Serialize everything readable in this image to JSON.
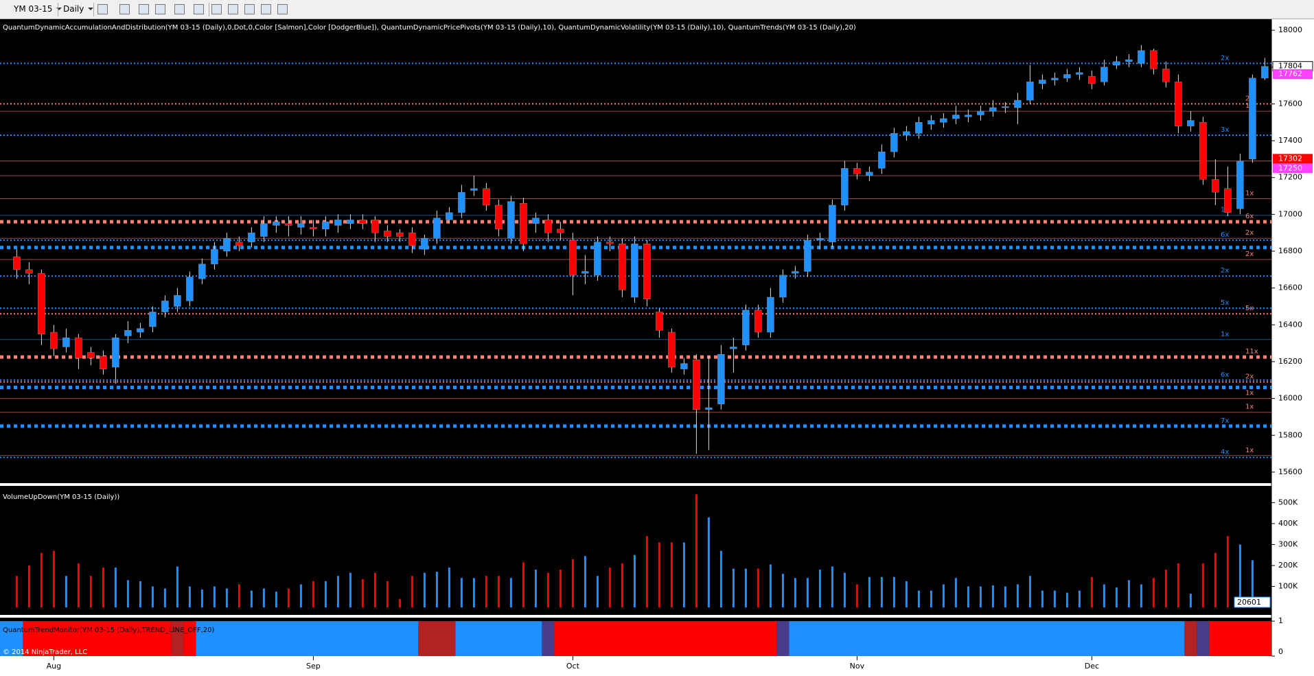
{
  "toolbar": {
    "instrument": "YM 03-15",
    "period": "Daily"
  },
  "chart_data": [
    {
      "type": "candlestick",
      "title": "QuantumDynamicAccumulationAndDistribution(YM 03-15 (Daily),0,Dot,0,Color [Salmon],Color [DodgerBlue]), QuantumDynamicPricePivots(YM 03-15 (Daily),10), QuantumDynamicVolatility(YM 03-15 (Daily),10), QuantumTrends(YM 03-15 (Daily),20)",
      "up_color": "#1e90ff",
      "down_color": "#ff0000",
      "open": [
        16770,
        16700,
        16680,
        16360,
        16280,
        16330,
        16250,
        16230,
        16170,
        16340,
        16360,
        16390,
        16470,
        16500,
        16530,
        16650,
        16730,
        16800,
        16850,
        16850,
        16880,
        16940,
        16950,
        16930,
        16930,
        16920,
        16940,
        16950,
        16970,
        16970,
        16910,
        16900,
        16900,
        16810,
        16870,
        16970,
        17010,
        17130,
        17140,
        17050,
        16870,
        17060,
        16950,
        16970,
        16920,
        16860,
        16680,
        16670,
        16850,
        16840,
        16550,
        16840,
        16470,
        16360,
        16160,
        16210,
        15940,
        15970,
        16270,
        16290,
        16480,
        16360,
        16550,
        16680,
        16690,
        16860,
        16850,
        17050,
        17250,
        17210,
        17250,
        17340,
        17430,
        17440,
        17490,
        17500,
        17520,
        17530,
        17540,
        17560,
        17580,
        17580,
        17620,
        17710,
        17730,
        17740,
        17760,
        17750,
        17720,
        17810,
        17830,
        17820,
        17890,
        17790,
        17720,
        17480,
        17500,
        17190,
        17140,
        17030,
        17300,
        17740
      ],
      "high": [
        16810,
        16740,
        16700,
        16400,
        16380,
        16350,
        16280,
        16260,
        16350,
        16420,
        16410,
        16500,
        16560,
        16600,
        16690,
        16760,
        16850,
        16900,
        16880,
        16930,
        16990,
        16990,
        16990,
        16990,
        16970,
        16990,
        17000,
        17000,
        17000,
        16990,
        16940,
        16920,
        16930,
        16890,
        17020,
        17040,
        17160,
        17210,
        17170,
        17080,
        17100,
        17090,
        17010,
        17000,
        16960,
        16900,
        16780,
        16880,
        16880,
        16870,
        16880,
        16860,
        16490,
        16380,
        16220,
        16240,
        16230,
        16290,
        16330,
        16510,
        16510,
        16600,
        16700,
        16720,
        16890,
        16900,
        17080,
        17290,
        17280,
        17260,
        17380,
        17470,
        17480,
        17530,
        17540,
        17550,
        17590,
        17570,
        17590,
        17620,
        17610,
        17660,
        17810,
        17760,
        17770,
        17790,
        17800,
        17780,
        17840,
        17860,
        17870,
        17920,
        17900,
        17830,
        17760,
        17560,
        17530,
        17300,
        17260,
        17330,
        17760,
        17850
      ],
      "low": [
        16650,
        16620,
        16290,
        16230,
        16250,
        16160,
        16180,
        16130,
        16080,
        16300,
        16330,
        16360,
        16440,
        16470,
        16500,
        16620,
        16700,
        16770,
        16800,
        16820,
        16850,
        16900,
        16880,
        16890,
        16880,
        16880,
        16900,
        16920,
        16920,
        16850,
        16850,
        16850,
        16790,
        16780,
        16840,
        16950,
        16980,
        17100,
        17020,
        16880,
        16840,
        16800,
        16900,
        16850,
        16860,
        16560,
        16620,
        16640,
        16800,
        16550,
        16520,
        16500,
        16330,
        16140,
        16130,
        15700,
        15720,
        15940,
        16140,
        16260,
        16330,
        16330,
        16520,
        16650,
        16660,
        16810,
        16820,
        17020,
        17190,
        17180,
        17220,
        17310,
        17400,
        17410,
        17460,
        17470,
        17490,
        17500,
        17510,
        17530,
        17550,
        17490,
        17600,
        17680,
        17700,
        17720,
        17730,
        17680,
        17700,
        17790,
        17800,
        17800,
        17760,
        17690,
        17440,
        17450,
        17160,
        17050,
        16990,
        17000,
        17280,
        17730
      ],
      "close": [
        16700,
        16680,
        16350,
        16270,
        16330,
        16220,
        16220,
        16160,
        16330,
        16370,
        16380,
        16470,
        16530,
        16560,
        16660,
        16730,
        16810,
        16870,
        16830,
        16900,
        16950,
        16960,
        16940,
        16950,
        16920,
        16960,
        16970,
        16970,
        16950,
        16900,
        16880,
        16880,
        16830,
        16870,
        16980,
        17010,
        17120,
        17140,
        17050,
        16920,
        17070,
        16840,
        16980,
        16900,
        16900,
        16670,
        16690,
        16850,
        16840,
        16590,
        16840,
        16540,
        16370,
        16170,
        16190,
        15940,
        15950,
        16240,
        16280,
        16480,
        16360,
        16550,
        16670,
        16690,
        16860,
        16870,
        17050,
        17250,
        17220,
        17230,
        17340,
        17440,
        17450,
        17500,
        17510,
        17520,
        17540,
        17540,
        17560,
        17580,
        17585,
        17620,
        17720,
        17730,
        17740,
        17760,
        17770,
        17710,
        17800,
        17830,
        17840,
        17890,
        17790,
        17720,
        17480,
        17510,
        17190,
        17120,
        17010,
        17290,
        17740,
        17804
      ],
      "ylim": [
        15540,
        18060
      ],
      "yticks": [
        15600,
        15800,
        16000,
        16200,
        16400,
        16600,
        16800,
        17000,
        17200,
        17400,
        17600,
        17800,
        18000
      ],
      "xticks": [
        {
          "value": 3,
          "label": "Aug"
        },
        {
          "value": 24,
          "label": "Sep"
        },
        {
          "value": 45,
          "label": "Oct"
        },
        {
          "value": 68,
          "label": "Nov"
        },
        {
          "value": 87,
          "label": "Dec"
        }
      ],
      "price_flags": [
        {
          "value": 17762,
          "color": "#ff40ff"
        },
        {
          "value": 17302,
          "color": "#ff0000"
        },
        {
          "value": 17250,
          "color": "#ff40ff"
        }
      ],
      "levels": [
        {
          "price": 17820,
          "color": "#1e90ff",
          "style": "dotted",
          "label": "2x"
        },
        {
          "price": 17600,
          "color": "#fa8072",
          "style": "dotted",
          "label": "2x"
        },
        {
          "price": 17560,
          "color": "#fa8072",
          "style": "solid",
          "label": "1x"
        },
        {
          "price": 17430,
          "color": "#1e90ff",
          "style": "dotted",
          "label": "3x"
        },
        {
          "price": 17290,
          "color": "#fa8072",
          "style": "solid"
        },
        {
          "price": 17210,
          "color": "#fa8072",
          "style": "solid"
        },
        {
          "price": 17085,
          "color": "#fa8072",
          "style": "solid",
          "label": "1x"
        },
        {
          "price": 16995,
          "color": "#1e90ff",
          "style": "solid",
          "label": "1x"
        },
        {
          "price": 16960,
          "color": "#fa8072",
          "style": "thick",
          "label": "6x"
        },
        {
          "price": 16870,
          "color": "#fa8072",
          "style": "solid",
          "label": "2x"
        },
        {
          "price": 16860,
          "color": "#1e90ff",
          "style": "dotted",
          "label": "6x"
        },
        {
          "price": 16820,
          "color": "#1e90ff",
          "style": "thick"
        },
        {
          "price": 16755,
          "color": "#fa8072",
          "style": "solid",
          "label": "2x"
        },
        {
          "price": 16665,
          "color": "#1e90ff",
          "style": "dotted",
          "label": "2x"
        },
        {
          "price": 16490,
          "color": "#1e90ff",
          "style": "dotted",
          "label": "5x"
        },
        {
          "price": 16460,
          "color": "#fa8072",
          "style": "dotted",
          "label": "5x"
        },
        {
          "price": 16320,
          "color": "#1e90ff",
          "style": "solid",
          "label": "1x"
        },
        {
          "price": 16225,
          "color": "#fa8072",
          "style": "thick",
          "label": "11x"
        },
        {
          "price": 16100,
          "color": "#1e90ff",
          "style": "dotted",
          "label": "6x"
        },
        {
          "price": 16090,
          "color": "#fa8072",
          "style": "dotted",
          "label": "2x"
        },
        {
          "price": 16060,
          "color": "#1e90ff",
          "style": "thick"
        },
        {
          "price": 16000,
          "color": "#fa8072",
          "style": "solid",
          "label": "1x"
        },
        {
          "price": 15925,
          "color": "#fa8072",
          "style": "solid",
          "label": "1x"
        },
        {
          "price": 15850,
          "color": "#1e90ff",
          "style": "thick",
          "label": "7x"
        },
        {
          "price": 15690,
          "color": "#fa8072",
          "style": "solid",
          "label": "1x"
        },
        {
          "price": 15680,
          "color": "#1e90ff",
          "style": "dotted",
          "label": "4x"
        }
      ]
    },
    {
      "type": "bar",
      "title": "VolumeUpDown(YM 03-15 (Daily))",
      "values": [
        150000,
        200000,
        260000,
        270000,
        150000,
        210000,
        150000,
        190000,
        190000,
        130000,
        125000,
        100000,
        90000,
        195000,
        100000,
        85000,
        100000,
        90000,
        110000,
        80000,
        90000,
        75000,
        90000,
        110000,
        125000,
        125000,
        150000,
        165000,
        135000,
        165000,
        125000,
        40000,
        150000,
        165000,
        170000,
        190000,
        140000,
        140000,
        150000,
        150000,
        140000,
        215000,
        180000,
        165000,
        180000,
        230000,
        245000,
        150000,
        190000,
        210000,
        250000,
        340000,
        310000,
        310000,
        310000,
        540000,
        430000,
        270000,
        185000,
        185000,
        185000,
        205000,
        160000,
        140000,
        140000,
        180000,
        195000,
        165000,
        110000,
        145000,
        145000,
        145000,
        125000,
        80000,
        80000,
        110000,
        140000,
        100000,
        100000,
        105000,
        100000,
        110000,
        150000,
        80000,
        80000,
        70000,
        80000,
        145000,
        110000,
        95000,
        130000,
        110000,
        140000,
        180000,
        210000,
        65000,
        210000,
        260000,
        340000,
        300000,
        225000,
        20601
      ],
      "ylim": [
        0,
        580000
      ],
      "yticks": [
        {
          "value": 100000,
          "label": "100K"
        },
        {
          "value": 200000,
          "label": "200K"
        },
        {
          "value": 300000,
          "label": "300K"
        },
        {
          "value": 400000,
          "label": "400K"
        },
        {
          "value": 500000,
          "label": "500K"
        }
      ]
    },
    {
      "type": "trend",
      "title": "QuantumTrendMonitor(YM 03-15 (Daily),TREND_LINE_OFF,20)",
      "footer": "© 2014 NinjaTrader, LLC",
      "ylim": [
        0,
        1.1
      ],
      "yticks": [
        0,
        1
      ],
      "segments": [
        {
          "color": "#1e90ff",
          "start": 0,
          "end": 0
        },
        {
          "color": "#ff0000",
          "start": 1,
          "end": 12
        },
        {
          "color": "#b22222",
          "start": 13,
          "end": 13
        },
        {
          "color": "#ff0000",
          "start": 14,
          "end": 14
        },
        {
          "color": "#1e90ff",
          "start": 15,
          "end": 32
        },
        {
          "color": "#b22222",
          "start": 33,
          "end": 35
        },
        {
          "color": "#1e90ff",
          "start": 36,
          "end": 42
        },
        {
          "color": "#483d8b",
          "start": 43,
          "end": 43
        },
        {
          "color": "#ff0000",
          "start": 44,
          "end": 61
        },
        {
          "color": "#483d8b",
          "start": 62,
          "end": 62
        },
        {
          "color": "#1e90ff",
          "start": 63,
          "end": 94
        },
        {
          "color": "#b22222",
          "start": 95,
          "end": 95
        },
        {
          "color": "#483d8b",
          "start": 96,
          "end": 96
        },
        {
          "color": "#ff0000",
          "start": 97,
          "end": 101
        }
      ]
    }
  ]
}
